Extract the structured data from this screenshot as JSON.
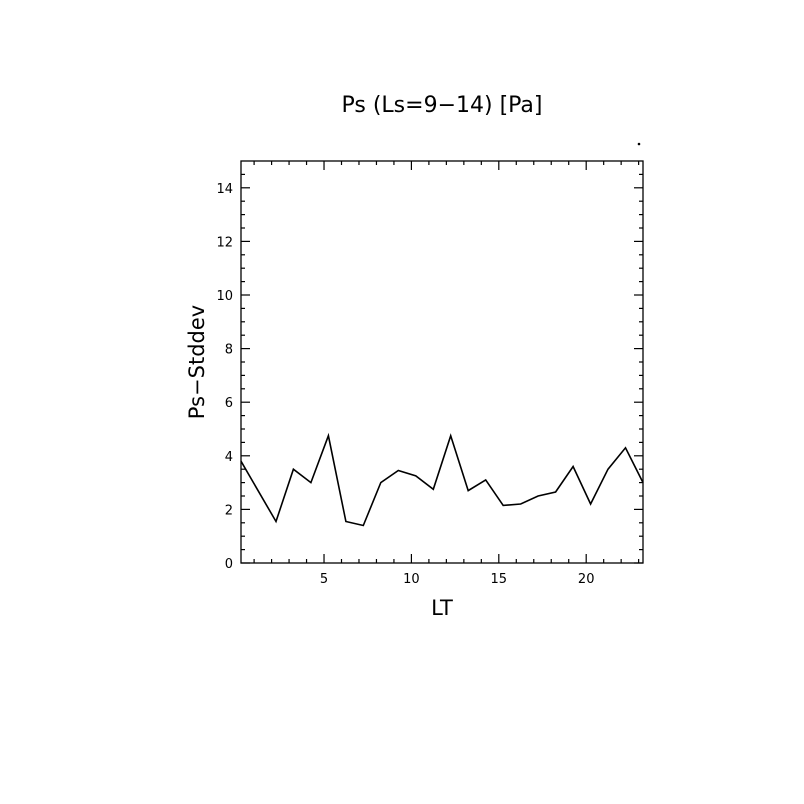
{
  "chart_data": {
    "type": "line",
    "title": "Ps (Ls=9−14) [Pa]",
    "xlabel": "LT",
    "ylabel": "Ps−Stddev",
    "xlim": [
      0.25,
      23.25
    ],
    "ylim": [
      0,
      15
    ],
    "xticks": [
      5,
      10,
      15,
      20
    ],
    "yticks": [
      0,
      2,
      4,
      6,
      8,
      10,
      12,
      14
    ],
    "grid": false,
    "series": [
      {
        "x": [
          0.25,
          2.25,
          3.25,
          4.25,
          5.25,
          6.25,
          7.25,
          8.25,
          9.25,
          10.25,
          11.25,
          12.25,
          13.25,
          14.25,
          15.25,
          16.25,
          17.25,
          18.25,
          19.25,
          20.25,
          21.25,
          22.25,
          23.25
        ],
        "y": [
          3.8,
          1.55,
          3.5,
          3.0,
          4.75,
          1.55,
          1.4,
          3.0,
          3.45,
          3.25,
          2.75,
          4.75,
          2.7,
          3.1,
          2.15,
          2.2,
          2.5,
          2.65,
          3.6,
          2.2,
          3.5,
          4.3,
          3.0
        ]
      }
    ]
  }
}
